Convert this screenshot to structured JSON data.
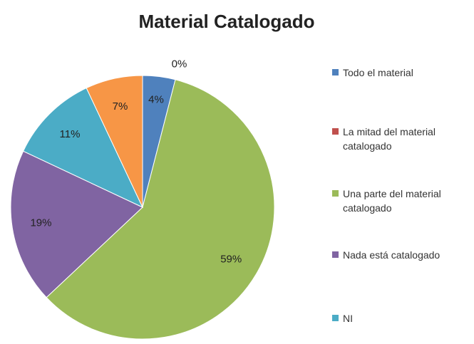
{
  "chart_data": {
    "type": "pie",
    "title": "Material Catalogado",
    "categories": [
      "Todo el material",
      "La mitad del material catalogado",
      "Una parte del material catalogado",
      "Nada está catalogado",
      "NI",
      null
    ],
    "values": [
      4,
      0,
      59,
      19,
      11,
      7
    ],
    "value_labels": [
      "4%",
      "0%",
      "59%",
      "19%",
      "11%",
      "7%"
    ],
    "colors": [
      "#4f81bd",
      "#c0504d",
      "#9bbb59",
      "#8064a2",
      "#4bacc6",
      "#f79646"
    ],
    "legend": "right"
  }
}
